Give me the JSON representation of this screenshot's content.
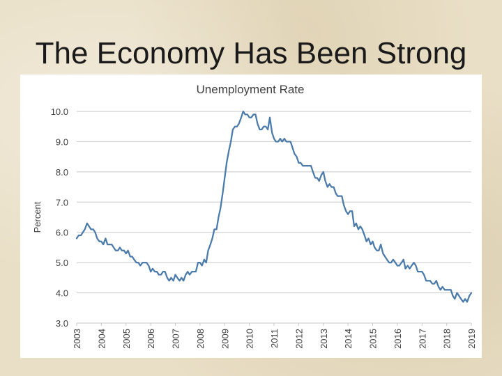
{
  "slide": {
    "title": "The Economy Has Been Strong"
  },
  "chart_data": {
    "type": "line",
    "title": "Unemployment Rate",
    "xlabel": "",
    "ylabel": "Percent",
    "x_ticks": [
      "2003",
      "2004",
      "2005",
      "2006",
      "2007",
      "2008",
      "2009",
      "2010",
      "2011",
      "2012",
      "2013",
      "2014",
      "2015",
      "2016",
      "2017",
      "2018",
      "2019"
    ],
    "y_ticks": [
      "3.0",
      "4.0",
      "5.0",
      "6.0",
      "7.0",
      "8.0",
      "9.0",
      "10.0"
    ],
    "xlim": [
      2003.0,
      2019.0
    ],
    "ylim": [
      3.0,
      10.0
    ],
    "grid": "horizontal",
    "legend": "none",
    "line_color": "#4a7aaa",
    "series": [
      {
        "x": [
          2003.0,
          2003.08,
          2003.17,
          2003.25,
          2003.33,
          2003.42,
          2003.5,
          2003.58,
          2003.67,
          2003.75,
          2003.83,
          2003.92,
          2004.0,
          2004.08,
          2004.17,
          2004.25,
          2004.33,
          2004.42,
          2004.5,
          2004.58,
          2004.67,
          2004.75,
          2004.83,
          2004.92,
          2005.0,
          2005.08,
          2005.17,
          2005.25,
          2005.33,
          2005.42,
          2005.5,
          2005.58,
          2005.67,
          2005.75,
          2005.83,
          2005.92,
          2006.0,
          2006.08,
          2006.17,
          2006.25,
          2006.33,
          2006.42,
          2006.5,
          2006.58,
          2006.67,
          2006.75,
          2006.83,
          2006.92,
          2007.0,
          2007.08,
          2007.17,
          2007.25,
          2007.33,
          2007.42,
          2007.5,
          2007.58,
          2007.67,
          2007.75,
          2007.83,
          2007.92,
          2008.0,
          2008.08,
          2008.17,
          2008.25,
          2008.33,
          2008.42,
          2008.5,
          2008.58,
          2008.67,
          2008.75,
          2008.83,
          2008.92,
          2009.0,
          2009.08,
          2009.17,
          2009.25,
          2009.33,
          2009.42,
          2009.5,
          2009.58,
          2009.67,
          2009.75,
          2009.83,
          2009.92,
          2010.0,
          2010.08,
          2010.17,
          2010.25,
          2010.33,
          2010.42,
          2010.5,
          2010.58,
          2010.67,
          2010.75,
          2010.83,
          2010.92,
          2011.0,
          2011.08,
          2011.17,
          2011.25,
          2011.33,
          2011.42,
          2011.5,
          2011.58,
          2011.67,
          2011.75,
          2011.83,
          2011.92,
          2012.0,
          2012.08,
          2012.17,
          2012.25,
          2012.33,
          2012.42,
          2012.5,
          2012.58,
          2012.67,
          2012.75,
          2012.83,
          2012.92,
          2013.0,
          2013.08,
          2013.17,
          2013.25,
          2013.33,
          2013.42,
          2013.5,
          2013.58,
          2013.67,
          2013.75,
          2013.83,
          2013.92,
          2014.0,
          2014.08,
          2014.17,
          2014.25,
          2014.33,
          2014.42,
          2014.5,
          2014.58,
          2014.67,
          2014.75,
          2014.83,
          2014.92,
          2015.0,
          2015.08,
          2015.17,
          2015.25,
          2015.33,
          2015.42,
          2015.5,
          2015.58,
          2015.67,
          2015.75,
          2015.83,
          2015.92,
          2016.0,
          2016.08,
          2016.17,
          2016.25,
          2016.33,
          2016.42,
          2016.5,
          2016.58,
          2016.67,
          2016.75,
          2016.83,
          2016.92,
          2017.0,
          2017.08,
          2017.17,
          2017.25,
          2017.33,
          2017.42,
          2017.5,
          2017.58,
          2017.67,
          2017.75,
          2017.83,
          2017.92,
          2018.0,
          2018.08,
          2018.17,
          2018.25,
          2018.33,
          2018.42,
          2018.5,
          2018.58,
          2018.67,
          2018.75,
          2018.83,
          2018.92,
          2019.0
        ],
        "y": [
          5.8,
          5.9,
          5.9,
          6.0,
          6.1,
          6.3,
          6.2,
          6.1,
          6.1,
          6.0,
          5.8,
          5.7,
          5.7,
          5.6,
          5.8,
          5.6,
          5.6,
          5.6,
          5.5,
          5.4,
          5.4,
          5.5,
          5.4,
          5.4,
          5.3,
          5.4,
          5.2,
          5.2,
          5.1,
          5.0,
          5.0,
          4.9,
          5.0,
          5.0,
          5.0,
          4.9,
          4.7,
          4.8,
          4.7,
          4.7,
          4.6,
          4.6,
          4.7,
          4.7,
          4.5,
          4.4,
          4.5,
          4.4,
          4.6,
          4.5,
          4.4,
          4.5,
          4.4,
          4.6,
          4.7,
          4.6,
          4.7,
          4.7,
          4.7,
          5.0,
          5.0,
          4.9,
          5.1,
          5.0,
          5.4,
          5.6,
          5.8,
          6.1,
          6.1,
          6.5,
          6.8,
          7.3,
          7.8,
          8.3,
          8.7,
          9.0,
          9.4,
          9.5,
          9.5,
          9.6,
          9.8,
          10.0,
          9.9,
          9.9,
          9.8,
          9.8,
          9.9,
          9.9,
          9.6,
          9.4,
          9.4,
          9.5,
          9.5,
          9.4,
          9.8,
          9.3,
          9.1,
          9.0,
          9.0,
          9.1,
          9.0,
          9.1,
          9.0,
          9.0,
          9.0,
          8.8,
          8.6,
          8.5,
          8.3,
          8.3,
          8.2,
          8.2,
          8.2,
          8.2,
          8.2,
          8.0,
          7.8,
          7.8,
          7.7,
          7.9,
          8.0,
          7.7,
          7.5,
          7.6,
          7.5,
          7.5,
          7.3,
          7.2,
          7.2,
          7.2,
          6.9,
          6.7,
          6.6,
          6.7,
          6.7,
          6.2,
          6.3,
          6.1,
          6.2,
          6.1,
          5.9,
          5.7,
          5.8,
          5.6,
          5.7,
          5.5,
          5.4,
          5.4,
          5.6,
          5.3,
          5.2,
          5.1,
          5.0,
          5.0,
          5.1,
          5.0,
          4.9,
          4.9,
          5.0,
          5.1,
          4.8,
          4.9,
          4.8,
          4.9,
          5.0,
          4.9,
          4.7,
          4.7,
          4.7,
          4.6,
          4.4,
          4.4,
          4.4,
          4.3,
          4.3,
          4.4,
          4.2,
          4.1,
          4.2,
          4.1,
          4.1,
          4.1,
          4.1,
          3.9,
          3.8,
          4.0,
          3.9,
          3.8,
          3.7,
          3.8,
          3.7,
          3.9,
          4.0
        ]
      }
    ]
  }
}
